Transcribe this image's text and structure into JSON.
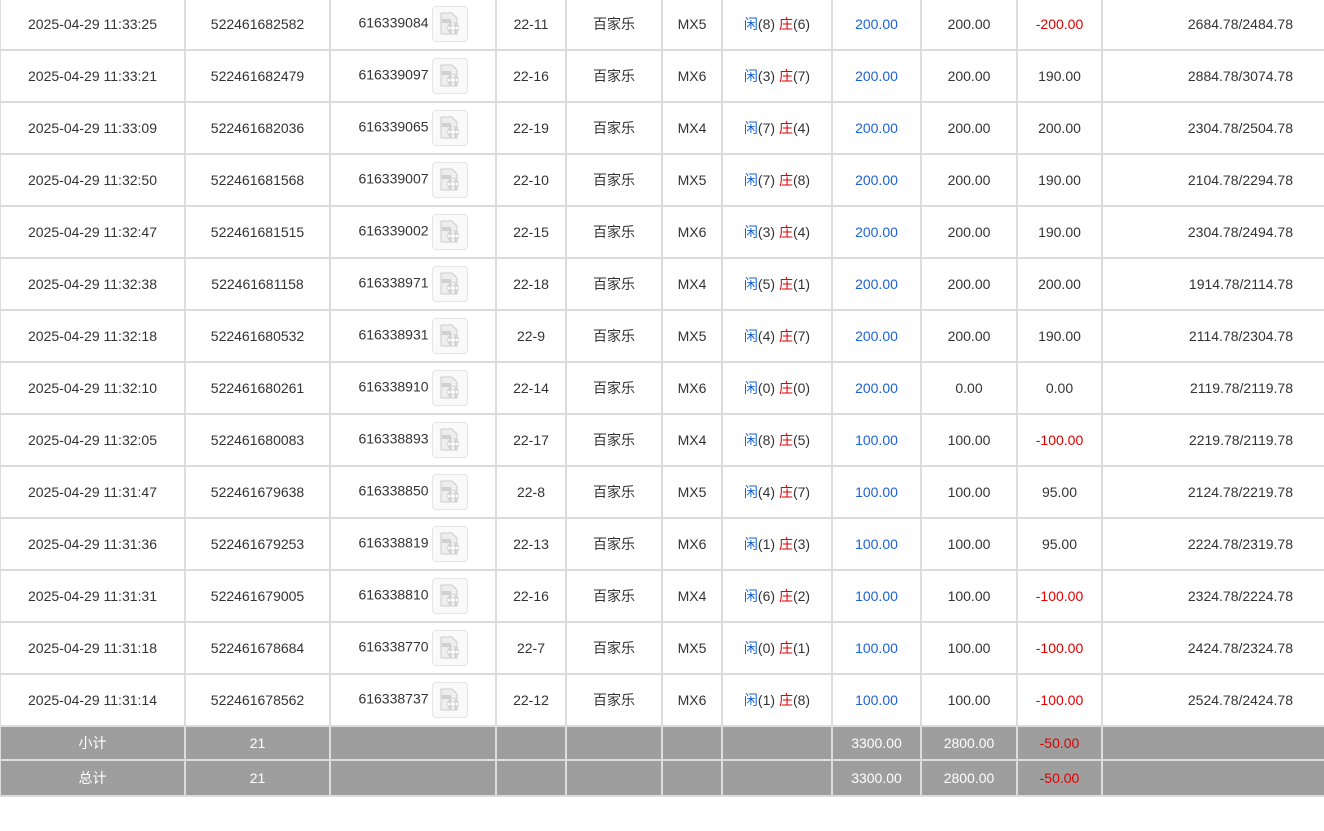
{
  "colors": {
    "blue": "#1a63d6",
    "red": "#e00000",
    "footer_bg": "#9e9e9e"
  },
  "rows": [
    {
      "time": "2025-04-29 11:33:25",
      "order": "522461682582",
      "round": "616339084",
      "shoe": "22-11",
      "game": "百家乐",
      "table": "MX5",
      "player_label": "闲",
      "player": "(8)",
      "banker_label": "庄",
      "banker": "(6)",
      "bet": "200.00",
      "valid": "200.00",
      "win": "-200.00",
      "balance": "2684.78/2484.78"
    },
    {
      "time": "2025-04-29 11:33:21",
      "order": "522461682479",
      "round": "616339097",
      "shoe": "22-16",
      "game": "百家乐",
      "table": "MX6",
      "player_label": "闲",
      "player": "(3)",
      "banker_label": "庄",
      "banker": "(7)",
      "bet": "200.00",
      "valid": "200.00",
      "win": "190.00",
      "balance": "2884.78/3074.78"
    },
    {
      "time": "2025-04-29 11:33:09",
      "order": "522461682036",
      "round": "616339065",
      "shoe": "22-19",
      "game": "百家乐",
      "table": "MX4",
      "player_label": "闲",
      "player": "(7)",
      "banker_label": "庄",
      "banker": "(4)",
      "bet": "200.00",
      "valid": "200.00",
      "win": "200.00",
      "balance": "2304.78/2504.78"
    },
    {
      "time": "2025-04-29 11:32:50",
      "order": "522461681568",
      "round": "616339007",
      "shoe": "22-10",
      "game": "百家乐",
      "table": "MX5",
      "player_label": "闲",
      "player": "(7)",
      "banker_label": "庄",
      "banker": "(8)",
      "bet": "200.00",
      "valid": "200.00",
      "win": "190.00",
      "balance": "2104.78/2294.78"
    },
    {
      "time": "2025-04-29 11:32:47",
      "order": "522461681515",
      "round": "616339002",
      "shoe": "22-15",
      "game": "百家乐",
      "table": "MX6",
      "player_label": "闲",
      "player": "(3)",
      "banker_label": "庄",
      "banker": "(4)",
      "bet": "200.00",
      "valid": "200.00",
      "win": "190.00",
      "balance": "2304.78/2494.78"
    },
    {
      "time": "2025-04-29 11:32:38",
      "order": "522461681158",
      "round": "616338971",
      "shoe": "22-18",
      "game": "百家乐",
      "table": "MX4",
      "player_label": "闲",
      "player": "(5)",
      "banker_label": "庄",
      "banker": "(1)",
      "bet": "200.00",
      "valid": "200.00",
      "win": "200.00",
      "balance": "1914.78/2114.78"
    },
    {
      "time": "2025-04-29 11:32:18",
      "order": "522461680532",
      "round": "616338931",
      "shoe": "22-9",
      "game": "百家乐",
      "table": "MX5",
      "player_label": "闲",
      "player": "(4)",
      "banker_label": "庄",
      "banker": "(7)",
      "bet": "200.00",
      "valid": "200.00",
      "win": "190.00",
      "balance": "2114.78/2304.78"
    },
    {
      "time": "2025-04-29 11:32:10",
      "order": "522461680261",
      "round": "616338910",
      "shoe": "22-14",
      "game": "百家乐",
      "table": "MX6",
      "player_label": "闲",
      "player": "(0)",
      "banker_label": "庄",
      "banker": "(0)",
      "bet": "200.00",
      "valid": "0.00",
      "win": "0.00",
      "balance": "2119.78/2119.78"
    },
    {
      "time": "2025-04-29 11:32:05",
      "order": "522461680083",
      "round": "616338893",
      "shoe": "22-17",
      "game": "百家乐",
      "table": "MX4",
      "player_label": "闲",
      "player": "(8)",
      "banker_label": "庄",
      "banker": "(5)",
      "bet": "100.00",
      "valid": "100.00",
      "win": "-100.00",
      "balance": "2219.78/2119.78"
    },
    {
      "time": "2025-04-29 11:31:47",
      "order": "522461679638",
      "round": "616338850",
      "shoe": "22-8",
      "game": "百家乐",
      "table": "MX5",
      "player_label": "闲",
      "player": "(4)",
      "banker_label": "庄",
      "banker": "(7)",
      "bet": "100.00",
      "valid": "100.00",
      "win": "95.00",
      "balance": "2124.78/2219.78"
    },
    {
      "time": "2025-04-29 11:31:36",
      "order": "522461679253",
      "round": "616338819",
      "shoe": "22-13",
      "game": "百家乐",
      "table": "MX6",
      "player_label": "闲",
      "player": "(1)",
      "banker_label": "庄",
      "banker": "(3)",
      "bet": "100.00",
      "valid": "100.00",
      "win": "95.00",
      "balance": "2224.78/2319.78"
    },
    {
      "time": "2025-04-29 11:31:31",
      "order": "522461679005",
      "round": "616338810",
      "shoe": "22-16",
      "game": "百家乐",
      "table": "MX4",
      "player_label": "闲",
      "player": "(6)",
      "banker_label": "庄",
      "banker": "(2)",
      "bet": "100.00",
      "valid": "100.00",
      "win": "-100.00",
      "balance": "2324.78/2224.78"
    },
    {
      "time": "2025-04-29 11:31:18",
      "order": "522461678684",
      "round": "616338770",
      "shoe": "22-7",
      "game": "百家乐",
      "table": "MX5",
      "player_label": "闲",
      "player": "(0)",
      "banker_label": "庄",
      "banker": "(1)",
      "bet": "100.00",
      "valid": "100.00",
      "win": "-100.00",
      "balance": "2424.78/2324.78"
    },
    {
      "time": "2025-04-29 11:31:14",
      "order": "522461678562",
      "round": "616338737",
      "shoe": "22-12",
      "game": "百家乐",
      "table": "MX6",
      "player_label": "闲",
      "player": "(1)",
      "banker_label": "庄",
      "banker": "(8)",
      "bet": "100.00",
      "valid": "100.00",
      "win": "-100.00",
      "balance": "2524.78/2424.78"
    }
  ],
  "subtotal": {
    "label": "小计",
    "count": "21",
    "bet": "3300.00",
    "valid": "2800.00",
    "win": "-50.00"
  },
  "total": {
    "label": "总计",
    "count": "21",
    "bet": "3300.00",
    "valid": "2800.00",
    "win": "-50.00"
  },
  "icons": {
    "replay": "video-file-icon"
  }
}
